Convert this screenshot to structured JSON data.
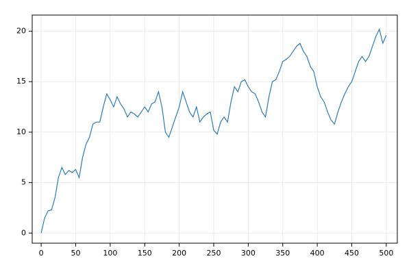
{
  "chart_data": {
    "type": "line",
    "x": [
      0,
      5,
      10,
      15,
      20,
      25,
      30,
      35,
      40,
      45,
      50,
      55,
      60,
      65,
      70,
      75,
      80,
      85,
      90,
      95,
      100,
      105,
      110,
      115,
      120,
      125,
      130,
      135,
      140,
      145,
      150,
      155,
      160,
      165,
      170,
      175,
      180,
      185,
      190,
      195,
      200,
      205,
      210,
      215,
      220,
      225,
      230,
      235,
      240,
      245,
      250,
      255,
      260,
      265,
      270,
      275,
      280,
      285,
      290,
      295,
      300,
      305,
      310,
      315,
      320,
      325,
      330,
      335,
      340,
      345,
      350,
      355,
      360,
      365,
      370,
      375,
      380,
      385,
      390,
      395,
      400,
      405,
      410,
      415,
      420,
      425,
      430,
      435,
      440,
      445,
      450,
      455,
      460,
      465,
      470,
      475,
      480,
      485,
      490,
      495,
      500
    ],
    "series": [
      {
        "color": "#2a7ab8",
        "values": [
          0,
          1.5,
          2.2,
          2.3,
          3.5,
          5.5,
          6.5,
          5.8,
          6.2,
          6.0,
          6.3,
          5.5,
          7.5,
          8.8,
          9.5,
          10.8,
          11.0,
          11.0,
          12.5,
          13.8,
          13.2,
          12.5,
          13.5,
          12.8,
          12.3,
          11.5,
          12.0,
          11.8,
          11.5,
          12.0,
          12.5,
          12.0,
          12.8,
          13.0,
          14.0,
          12.5,
          10.0,
          9.5,
          10.5,
          11.5,
          12.5,
          14.0,
          13.0,
          12.0,
          11.5,
          12.5,
          11.0,
          11.5,
          11.8,
          12.0,
          10.2,
          9.8,
          11.0,
          11.5,
          11.0,
          13.0,
          14.5,
          14.0,
          15.0,
          15.2,
          14.5,
          14.0,
          13.8,
          13.0,
          12.0,
          11.5,
          13.5,
          15.0,
          15.2,
          16.0,
          17.0,
          17.2,
          17.5,
          18.0,
          18.5,
          18.8,
          18.0,
          17.5,
          16.5,
          16.0,
          14.5,
          13.5,
          13.0,
          12.0,
          11.2,
          10.8,
          12.0,
          13.0,
          13.8,
          14.5,
          15.0,
          16.0,
          17.0,
          17.5,
          17.0,
          17.5,
          18.5,
          19.5,
          20.2,
          18.8,
          19.6
        ]
      }
    ],
    "xlim": [
      -13,
      516
    ],
    "ylim": [
      -1.0,
      21.6
    ],
    "xticks": [
      0,
      50,
      100,
      150,
      200,
      250,
      300,
      350,
      400,
      450,
      500
    ],
    "yticks": [
      0,
      5,
      10,
      15,
      20
    ],
    "grid": true
  }
}
